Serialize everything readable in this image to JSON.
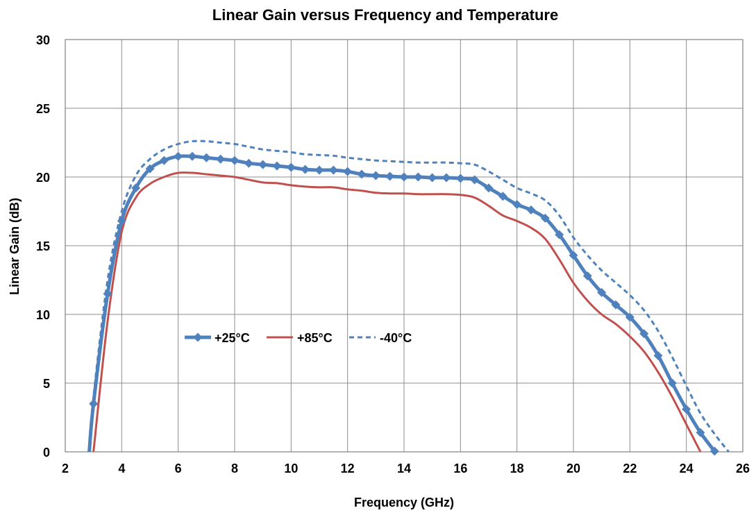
{
  "chart_data": {
    "type": "line",
    "title": "Linear Gain versus Frequency and Temperature",
    "xlabel": "Frequency (GHz)",
    "ylabel": "Linear Gain (dB)",
    "xlim": [
      2,
      26
    ],
    "ylim": [
      0,
      30
    ],
    "x_ticks": [
      "2",
      "4",
      "6",
      "8",
      "10",
      "12",
      "14",
      "16",
      "18",
      "20",
      "22",
      "24",
      "26"
    ],
    "y_ticks": [
      "0",
      "5",
      "10",
      "15",
      "20",
      "25",
      "30"
    ],
    "grid": true,
    "legend_position": "center-left",
    "series": [
      {
        "name": "+25°C",
        "color": "#4F81BD",
        "style": "solid-with-diamond-markers",
        "points": [
          [
            2.85,
            0
          ],
          [
            3.0,
            3.5
          ],
          [
            3.5,
            11.5
          ],
          [
            4.0,
            16.8
          ],
          [
            4.5,
            19.2
          ],
          [
            5.0,
            20.6
          ],
          [
            5.5,
            21.2
          ],
          [
            6.0,
            21.5
          ],
          [
            6.5,
            21.5
          ],
          [
            7.0,
            21.4
          ],
          [
            7.5,
            21.3
          ],
          [
            8.0,
            21.2
          ],
          [
            8.5,
            21.0
          ],
          [
            9.0,
            20.9
          ],
          [
            9.5,
            20.8
          ],
          [
            10.0,
            20.7
          ],
          [
            10.5,
            20.55
          ],
          [
            11.0,
            20.5
          ],
          [
            11.5,
            20.5
          ],
          [
            12.0,
            20.4
          ],
          [
            12.5,
            20.2
          ],
          [
            13.0,
            20.1
          ],
          [
            13.5,
            20.05
          ],
          [
            14.0,
            20.0
          ],
          [
            14.5,
            20.0
          ],
          [
            15.0,
            19.95
          ],
          [
            15.5,
            19.95
          ],
          [
            16.0,
            19.9
          ],
          [
            16.5,
            19.8
          ],
          [
            17.0,
            19.2
          ],
          [
            17.5,
            18.6
          ],
          [
            18.0,
            18.0
          ],
          [
            18.5,
            17.6
          ],
          [
            19.0,
            17.0
          ],
          [
            19.5,
            15.8
          ],
          [
            20.0,
            14.3
          ],
          [
            20.5,
            12.8
          ],
          [
            21.0,
            11.6
          ],
          [
            21.5,
            10.7
          ],
          [
            22.0,
            9.8
          ],
          [
            22.5,
            8.6
          ],
          [
            23.0,
            7.0
          ],
          [
            23.5,
            5.0
          ],
          [
            24.0,
            3.1
          ],
          [
            24.5,
            1.4
          ],
          [
            25.0,
            0.05
          ]
        ]
      },
      {
        "name": "+85°C",
        "color": "#C0504D",
        "style": "solid",
        "points": [
          [
            3.0,
            0
          ],
          [
            3.5,
            9.5
          ],
          [
            4.0,
            16.0
          ],
          [
            4.5,
            18.5
          ],
          [
            5.0,
            19.5
          ],
          [
            5.5,
            20.0
          ],
          [
            6.0,
            20.3
          ],
          [
            6.5,
            20.3
          ],
          [
            7.0,
            20.2
          ],
          [
            7.5,
            20.1
          ],
          [
            8.0,
            20.0
          ],
          [
            8.5,
            19.8
          ],
          [
            9.0,
            19.6
          ],
          [
            9.5,
            19.55
          ],
          [
            10.0,
            19.4
          ],
          [
            10.5,
            19.3
          ],
          [
            11.0,
            19.25
          ],
          [
            11.5,
            19.25
          ],
          [
            12.0,
            19.1
          ],
          [
            12.5,
            19.0
          ],
          [
            13.0,
            18.85
          ],
          [
            13.5,
            18.8
          ],
          [
            14.0,
            18.8
          ],
          [
            14.5,
            18.75
          ],
          [
            15.0,
            18.75
          ],
          [
            15.5,
            18.75
          ],
          [
            16.0,
            18.7
          ],
          [
            16.5,
            18.5
          ],
          [
            17.0,
            17.9
          ],
          [
            17.5,
            17.2
          ],
          [
            18.0,
            16.8
          ],
          [
            18.5,
            16.3
          ],
          [
            19.0,
            15.5
          ],
          [
            19.5,
            14.0
          ],
          [
            20.0,
            12.3
          ],
          [
            20.5,
            11.0
          ],
          [
            21.0,
            10.0
          ],
          [
            21.5,
            9.3
          ],
          [
            22.0,
            8.4
          ],
          [
            22.5,
            7.3
          ],
          [
            23.0,
            5.8
          ],
          [
            23.5,
            4.0
          ],
          [
            24.0,
            2.0
          ],
          [
            24.5,
            0
          ]
        ]
      },
      {
        "name": "-40°C",
        "color": "#4F81BD",
        "style": "dashed",
        "points": [
          [
            2.85,
            0
          ],
          [
            3.0,
            4.0
          ],
          [
            3.5,
            12.5
          ],
          [
            4.0,
            17.5
          ],
          [
            4.5,
            20.1
          ],
          [
            5.0,
            21.3
          ],
          [
            5.5,
            22.0
          ],
          [
            6.0,
            22.4
          ],
          [
            6.5,
            22.6
          ],
          [
            7.0,
            22.6
          ],
          [
            7.5,
            22.5
          ],
          [
            8.0,
            22.4
          ],
          [
            8.5,
            22.2
          ],
          [
            9.0,
            22.0
          ],
          [
            9.5,
            21.9
          ],
          [
            10.0,
            21.8
          ],
          [
            10.5,
            21.65
          ],
          [
            11.0,
            21.6
          ],
          [
            11.5,
            21.55
          ],
          [
            12.0,
            21.4
          ],
          [
            12.5,
            21.3
          ],
          [
            13.0,
            21.2
          ],
          [
            13.5,
            21.15
          ],
          [
            14.0,
            21.1
          ],
          [
            14.5,
            21.05
          ],
          [
            15.0,
            21.05
          ],
          [
            15.5,
            21.05
          ],
          [
            16.0,
            21.0
          ],
          [
            16.5,
            20.9
          ],
          [
            17.0,
            20.4
          ],
          [
            17.5,
            19.8
          ],
          [
            18.0,
            19.2
          ],
          [
            18.5,
            18.8
          ],
          [
            19.0,
            18.3
          ],
          [
            19.5,
            17.2
          ],
          [
            20.0,
            15.6
          ],
          [
            20.5,
            14.3
          ],
          [
            21.0,
            13.2
          ],
          [
            21.5,
            12.3
          ],
          [
            22.0,
            11.4
          ],
          [
            22.5,
            10.3
          ],
          [
            23.0,
            8.8
          ],
          [
            23.5,
            6.9
          ],
          [
            24.0,
            4.8
          ],
          [
            24.5,
            2.8
          ],
          [
            25.0,
            1.3
          ],
          [
            25.5,
            0
          ]
        ]
      }
    ]
  }
}
